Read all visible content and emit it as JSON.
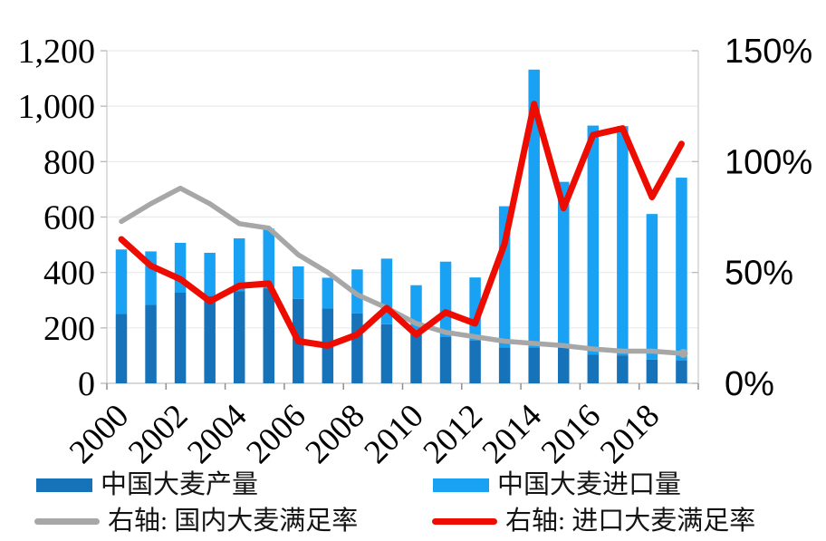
{
  "page": {
    "background": "#ffffff"
  },
  "chart_data": {
    "type": "bar+line",
    "stacked": true,
    "grid": "horizontal light gray lines every 200 units",
    "legend_position": "bottom, two rows",
    "categories": [
      "2000",
      "2001",
      "2002",
      "2003",
      "2004",
      "2005",
      "2006",
      "2007",
      "2008",
      "2009",
      "2010",
      "2011",
      "2012",
      "2013",
      "2014",
      "2015",
      "2016",
      "2017",
      "2018",
      "2019"
    ],
    "x_axis": {
      "tick_labels": [
        "2000",
        "2002",
        "2004",
        "2006",
        "2008",
        "2010",
        "2012",
        "2014",
        "2016",
        "2018"
      ],
      "label_rotation_deg": -45
    },
    "left_axis": {
      "min": 0,
      "max": 1200,
      "step": 200,
      "tick_labels": [
        "1,200",
        "1,000",
        "800",
        "600",
        "400",
        "200",
        "0"
      ]
    },
    "right_axis": {
      "min_pct": 0,
      "max_pct": 150,
      "step_pct": 50,
      "tick_labels": [
        "150%",
        "100%",
        "50%",
        "0%"
      ]
    },
    "bar_series": [
      {
        "name": "中国大麦产量",
        "axis": "left",
        "color": "#1673B9",
        "values": [
          250,
          283,
          327,
          316,
          333,
          343,
          305,
          270,
          252,
          213,
          185,
          168,
          155,
          130,
          130,
          131,
          103,
          101,
          86,
          83
        ]
      },
      {
        "name": "中国大麦进口量",
        "axis": "left",
        "color": "#19A2F4",
        "stacked_on": "中国大麦产量",
        "values": [
          233,
          193,
          180,
          155,
          190,
          215,
          117,
          111,
          159,
          237,
          169,
          271,
          227,
          509,
          1002,
          596,
          827,
          827,
          525,
          659
        ]
      }
    ],
    "line_series": [
      {
        "name": "右轴: 国内大麦满足率",
        "axis": "right",
        "color": "#A7A7A7",
        "values_pct": [
          73,
          81,
          88,
          81,
          72,
          70,
          58,
          50,
          40,
          34,
          27,
          23,
          21,
          19,
          18,
          17,
          15.5,
          14.5,
          14.5,
          13.5
        ]
      },
      {
        "name": "右轴: 进口大麦满足率",
        "axis": "right",
        "color": "#EE0B00",
        "values_pct": [
          65,
          53,
          47,
          37,
          44,
          45,
          19,
          17,
          22,
          34,
          22,
          32,
          27,
          63,
          126,
          79,
          112,
          115,
          84,
          108
        ]
      }
    ]
  }
}
